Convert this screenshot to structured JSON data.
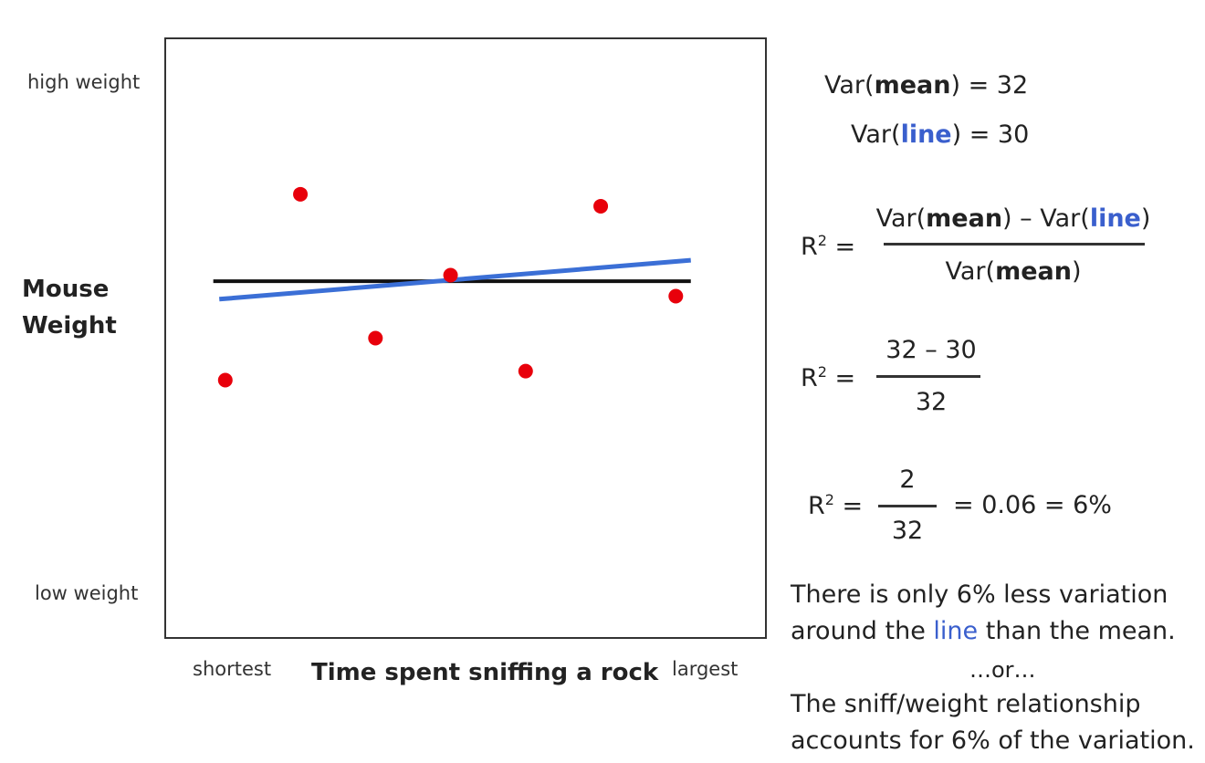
{
  "chart_data": {
    "type": "scatter",
    "title": "",
    "xlabel": "Time spent sniffing a rock",
    "ylabel_lines": [
      "Mouse",
      "Weight"
    ],
    "x_tick_labels": [
      "shortest",
      "largest"
    ],
    "y_tick_labels": [
      "high weight",
      "low weight"
    ],
    "xlim": [
      0,
      10
    ],
    "ylim": [
      0,
      10
    ],
    "grid": false,
    "points": [
      {
        "x": 1.0,
        "y": 4.3
      },
      {
        "x": 2.25,
        "y": 7.4
      },
      {
        "x": 3.5,
        "y": 5.0
      },
      {
        "x": 4.75,
        "y": 6.05
      },
      {
        "x": 6.0,
        "y": 4.45
      },
      {
        "x": 7.25,
        "y": 7.2
      },
      {
        "x": 8.5,
        "y": 5.7
      }
    ],
    "point_color": "#e8000b",
    "lines": [
      {
        "kind": "mean",
        "x": [
          0.8,
          8.75
        ],
        "y": [
          5.95,
          5.95
        ],
        "color": "#111111"
      },
      {
        "kind": "fit",
        "x": [
          0.9,
          8.75
        ],
        "y": [
          5.65,
          6.3
        ],
        "color": "#3b6fd6"
      }
    ]
  },
  "equations": {
    "var_mean": {
      "pre": "Var(",
      "bold": "mean",
      "post": ") = 32"
    },
    "var_line": {
      "pre": "Var(",
      "bold": "line",
      "post": ") = 30"
    },
    "r2_prefix": "R",
    "r2_sup": "2",
    "r2_eq": " =",
    "frac1": {
      "num_pre": "Var(",
      "num_b1": "mean",
      "num_mid": ") – Var(",
      "num_b2": "line",
      "num_post": ")",
      "den_pre": "Var(",
      "den_b": "mean",
      "den_post": ")"
    },
    "frac2": {
      "num": "32 – 30",
      "den": "32"
    },
    "frac3": {
      "num": "2",
      "den": "32",
      "result": "= 0.06 = 6%"
    }
  },
  "notes": {
    "line1": "There is only 6% less variation",
    "line2_pre": "around the ",
    "line2_blue": "line",
    "line2_post": " than the mean.",
    "or": "…or…",
    "line3": "The sniff/weight relationship",
    "line4": "accounts for 6% of the variation."
  }
}
